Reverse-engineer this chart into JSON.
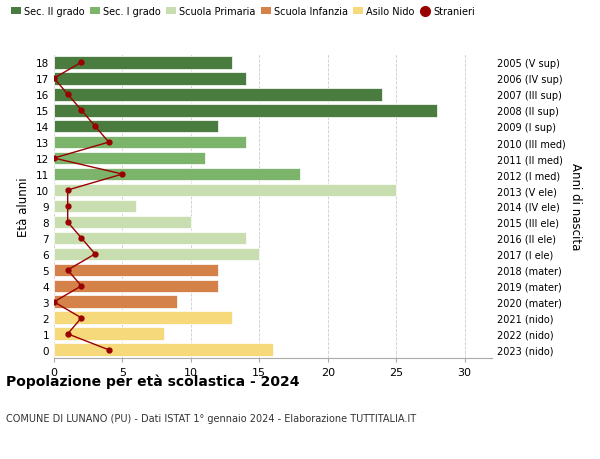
{
  "ages": [
    18,
    17,
    16,
    15,
    14,
    13,
    12,
    11,
    10,
    9,
    8,
    7,
    6,
    5,
    4,
    3,
    2,
    1,
    0
  ],
  "right_labels": [
    "2005 (V sup)",
    "2006 (IV sup)",
    "2007 (III sup)",
    "2008 (II sup)",
    "2009 (I sup)",
    "2010 (III med)",
    "2011 (II med)",
    "2012 (I med)",
    "2013 (V ele)",
    "2014 (IV ele)",
    "2015 (III ele)",
    "2016 (II ele)",
    "2017 (I ele)",
    "2018 (mater)",
    "2019 (mater)",
    "2020 (mater)",
    "2021 (nido)",
    "2022 (nido)",
    "2023 (nido)"
  ],
  "bar_values": [
    13,
    14,
    24,
    28,
    12,
    14,
    11,
    18,
    25,
    6,
    10,
    14,
    15,
    12,
    12,
    9,
    13,
    8,
    16
  ],
  "bar_colors": [
    "#4a7c3f",
    "#4a7c3f",
    "#4a7c3f",
    "#4a7c3f",
    "#4a7c3f",
    "#7db46c",
    "#7db46c",
    "#7db46c",
    "#c8ddb0",
    "#c8ddb0",
    "#c8ddb0",
    "#c8ddb0",
    "#c8ddb0",
    "#d4824a",
    "#d4824a",
    "#d4824a",
    "#f5d97a",
    "#f5d97a",
    "#f5d97a"
  ],
  "stranieri_values": [
    2,
    0,
    1,
    2,
    3,
    4,
    0,
    5,
    1,
    1,
    1,
    2,
    3,
    1,
    2,
    0,
    2,
    1,
    4
  ],
  "stranieri_color": "#990000",
  "legend_labels": [
    "Sec. II grado",
    "Sec. I grado",
    "Scuola Primaria",
    "Scuola Infanzia",
    "Asilo Nido",
    "Stranieri"
  ],
  "legend_colors": [
    "#4a7c3f",
    "#7db46c",
    "#c8ddb0",
    "#d4824a",
    "#f5d97a",
    "#990000"
  ],
  "ylabel_left": "Età alunni",
  "ylabel_right": "Anni di nascita",
  "title": "Popolazione per età scolastica - 2024",
  "subtitle": "COMUNE DI LUNANO (PU) - Dati ISTAT 1° gennaio 2024 - Elaborazione TUTTITALIA.IT",
  "xlim": [
    0,
    32
  ],
  "xticks": [
    0,
    5,
    10,
    15,
    20,
    25,
    30
  ],
  "background_color": "#ffffff",
  "grid_color": "#cccccc"
}
